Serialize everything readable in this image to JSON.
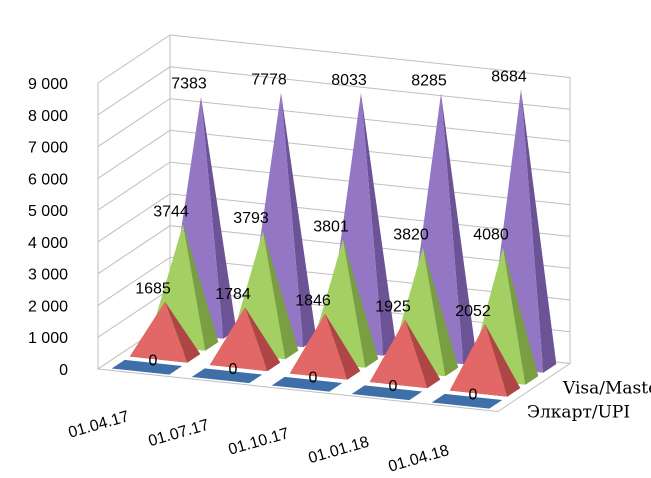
{
  "chart_data": {
    "type": "bar",
    "style": "3d-pyramid",
    "categories": [
      "01.04.17",
      "01.07.17",
      "01.10.17",
      "01.01.18",
      "01.04.18"
    ],
    "series": [
      {
        "name": "Элкарт/UPI",
        "values": [
          0,
          0,
          0,
          0,
          0
        ],
        "color": "#3f6fa8",
        "labels": [
          "0",
          "0",
          "0",
          "0",
          "0"
        ]
      },
      {
        "name": "",
        "values": [
          1685,
          1784,
          1846,
          1925,
          2052
        ],
        "color": "#e05a5a",
        "labels": [
          "1685",
          "1784",
          "1846",
          "1925",
          "2052"
        ]
      },
      {
        "name": "Visa/Master",
        "values": [
          3744,
          3793,
          3801,
          3820,
          4080
        ],
        "color": "#9ccc55",
        "labels": [
          "3744",
          "3793",
          "3801",
          "3820",
          "4080"
        ]
      },
      {
        "name": "",
        "values": [
          7383,
          7778,
          8033,
          8285,
          8684
        ],
        "color": "#8a6bbf",
        "labels": [
          "7383",
          "7778",
          "8033",
          "8285",
          "8684"
        ]
      }
    ],
    "y_ticks": [
      "0",
      "1 000",
      "2 000",
      "3 000",
      "4 000",
      "5 000",
      "6 000",
      "7 000",
      "8 000",
      "9 000"
    ],
    "ylim": [
      0,
      9000
    ],
    "grid": true,
    "title": "",
    "xlabel": "",
    "ylabel": ""
  }
}
